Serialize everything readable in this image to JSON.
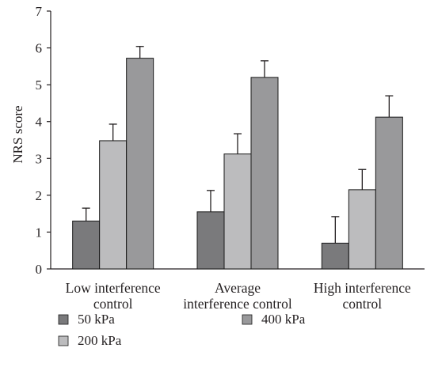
{
  "chart_data": {
    "type": "bar",
    "title": "",
    "xlabel": "",
    "ylabel": "NRS score",
    "ylim": [
      0,
      7
    ],
    "yticks": [
      0,
      1,
      2,
      3,
      4,
      5,
      6,
      7
    ],
    "grid": false,
    "legend_position": "bottom",
    "error_bars": true,
    "categories": [
      [
        "Low interference",
        "control"
      ],
      [
        "Average",
        "interference control"
      ],
      [
        "High interference",
        "control"
      ]
    ],
    "series": [
      {
        "name": "50 kPa",
        "color": "#7a7a7c",
        "values": [
          1.3,
          1.55,
          0.7
        ],
        "errors": [
          0.35,
          0.58,
          0.72
        ]
      },
      {
        "name": "200 kPa",
        "color": "#bcbcbe",
        "values": [
          3.48,
          3.12,
          2.15
        ],
        "errors": [
          0.45,
          0.55,
          0.55
        ]
      },
      {
        "name": "400 kPa",
        "color": "#99999b",
        "values": [
          5.72,
          5.2,
          4.12
        ],
        "errors": [
          0.32,
          0.45,
          0.58
        ]
      }
    ]
  }
}
